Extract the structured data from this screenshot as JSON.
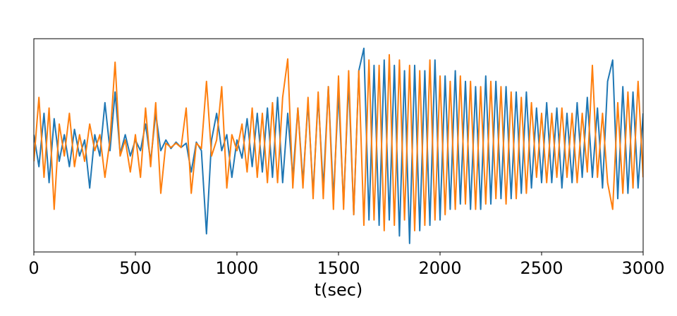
{
  "chart_data": {
    "type": "line",
    "xlabel": "t(sec)",
    "x": [
      0,
      25,
      50,
      75,
      100,
      125,
      150,
      175,
      200,
      225,
      250,
      275,
      300,
      325,
      350,
      375,
      400,
      425,
      450,
      475,
      500,
      525,
      550,
      575,
      600,
      625,
      650,
      675,
      700,
      725,
      750,
      775,
      800,
      825,
      850,
      875,
      900,
      925,
      950,
      975,
      1000,
      1025,
      1050,
      1075,
      1100,
      1125,
      1150,
      1175,
      1200,
      1225,
      1250,
      1275,
      1300,
      1325,
      1350,
      1375,
      1400,
      1425,
      1450,
      1475,
      1500,
      1525,
      1550,
      1575,
      1600,
      1625,
      1650,
      1675,
      1700,
      1725,
      1750,
      1775,
      1800,
      1825,
      1850,
      1875,
      1900,
      1925,
      1950,
      1975,
      2000,
      2025,
      2050,
      2075,
      2100,
      2125,
      2150,
      2175,
      2200,
      2225,
      2250,
      2275,
      2300,
      2325,
      2350,
      2375,
      2400,
      2425,
      2450,
      2475,
      2500,
      2525,
      2550,
      2575,
      2600,
      2625,
      2650,
      2675,
      2700,
      2725,
      2750,
      2775,
      2800,
      2825,
      2850,
      2875,
      2900,
      2925,
      2950,
      2975,
      3000
    ],
    "series": [
      {
        "color": "#1f77b4",
        "values": [
          0.1,
          -0.2,
          0.3,
          -0.35,
          0.25,
          -0.15,
          0.1,
          -0.2,
          0.15,
          -0.1,
          0.05,
          -0.4,
          0.1,
          -0.1,
          0.4,
          -0.05,
          0.5,
          -0.08,
          0.1,
          -0.1,
          0.05,
          -0.05,
          0.2,
          -0.15,
          0.3,
          -0.05,
          0.05,
          -0.03,
          0.03,
          -0.02,
          0.02,
          -0.25,
          0.03,
          -0.05,
          -0.83,
          0.05,
          0.3,
          -0.05,
          0.1,
          -0.3,
          0.05,
          -0.12,
          0.25,
          -0.2,
          0.3,
          -0.25,
          0.35,
          -0.3,
          0.45,
          -0.35,
          0.3,
          -0.3,
          0.35,
          -0.35,
          0.4,
          -0.45,
          0.45,
          -0.4,
          0.55,
          -0.5,
          0.5,
          -0.55,
          0.6,
          -0.65,
          0.7,
          0.91,
          -0.7,
          0.75,
          -0.75,
          0.8,
          -0.7,
          0.75,
          -0.85,
          0.7,
          -0.92,
          0.75,
          -0.8,
          0.7,
          -0.75,
          0.8,
          -0.7,
          0.65,
          -0.6,
          0.7,
          -0.55,
          0.6,
          -0.6,
          0.55,
          -0.6,
          0.65,
          -0.55,
          0.6,
          -0.5,
          0.55,
          -0.5,
          0.5,
          -0.45,
          0.5,
          -0.4,
          0.35,
          -0.35,
          0.4,
          -0.35,
          0.35,
          -0.4,
          0.3,
          -0.35,
          0.4,
          -0.3,
          0.45,
          -0.3,
          0.35,
          -0.4,
          0.6,
          0.8,
          -0.5,
          0.55,
          -0.45,
          0.5,
          -0.4,
          0.3
        ]
      },
      {
        "color": "#ff7f0e",
        "values": [
          -0.15,
          0.45,
          -0.3,
          0.35,
          -0.6,
          0.2,
          -0.1,
          0.3,
          -0.2,
          0.1,
          -0.15,
          0.2,
          -0.05,
          0.1,
          -0.3,
          0.05,
          0.78,
          -0.1,
          0.05,
          -0.25,
          0.1,
          -0.3,
          0.35,
          -0.2,
          0.4,
          -0.45,
          0.02,
          -0.02,
          0.02,
          -0.02,
          0.35,
          -0.45,
          0.02,
          -0.03,
          0.6,
          -0.1,
          0.05,
          0.55,
          -0.4,
          0.1,
          -0.05,
          0.2,
          -0.25,
          0.35,
          -0.3,
          0.3,
          -0.35,
          0.4,
          -0.35,
          0.45,
          0.81,
          -0.4,
          0.35,
          -0.4,
          0.45,
          -0.5,
          0.5,
          -0.5,
          0.55,
          -0.6,
          0.65,
          -0.6,
          0.7,
          -0.65,
          0.7,
          -0.75,
          0.8,
          -0.7,
          0.75,
          -0.8,
          0.85,
          -0.75,
          0.8,
          -0.7,
          0.75,
          -0.8,
          0.7,
          -0.75,
          0.8,
          -0.7,
          0.65,
          -0.65,
          0.6,
          -0.6,
          0.65,
          -0.55,
          0.6,
          -0.6,
          0.55,
          -0.55,
          0.6,
          -0.5,
          0.55,
          -0.55,
          0.5,
          -0.5,
          0.45,
          -0.45,
          0.4,
          -0.3,
          0.3,
          -0.35,
          0.3,
          -0.3,
          0.35,
          -0.3,
          0.3,
          -0.35,
          0.3,
          -0.25,
          0.75,
          -0.3,
          0.3,
          -0.35,
          -0.6,
          0.4,
          -0.45,
          0.5,
          -0.4,
          0.6,
          -0.3
        ]
      }
    ],
    "xlim": [
      0,
      3000
    ],
    "xticks": [
      0,
      500,
      1000,
      1500,
      2000,
      2500,
      3000
    ],
    "ylim": [
      -1,
      1
    ],
    "grid": false
  }
}
